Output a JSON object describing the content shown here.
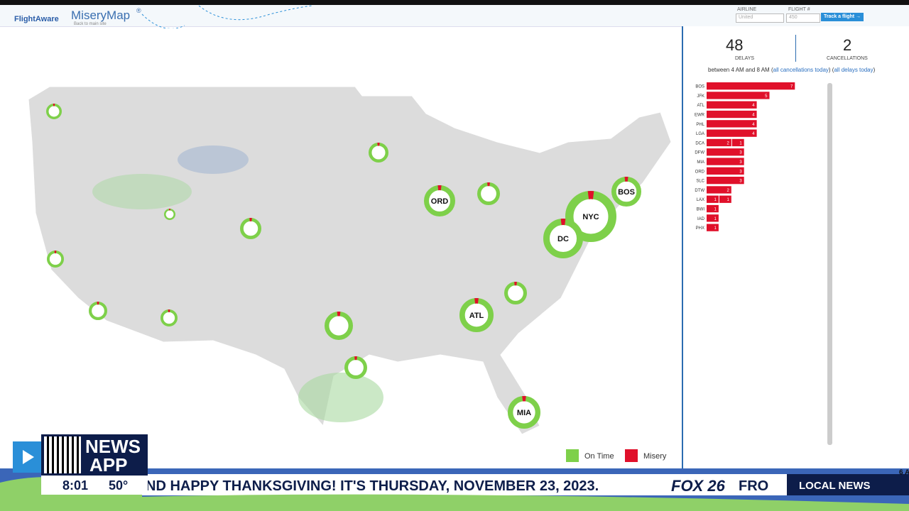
{
  "header": {
    "logo": "FlightAware",
    "title": "MiseryMap",
    "title_mark": "®",
    "back_link": "Back to main site",
    "airline_label": "AIRLINE",
    "airline_placeholder": "United",
    "flight_label": "FLIGHT #",
    "flight_placeholder": "450",
    "track_button": "Track a flight →"
  },
  "stats": {
    "delays": "48",
    "delays_label": "DELAYS",
    "cancellations": "2",
    "cancellations_label": "CANCELLATIONS",
    "period": "between 4 AM and 8 AM",
    "cancel_link": "all cancellations today",
    "delay_link": "all delays today"
  },
  "delay_bars": {
    "rows": [
      {
        "airport": "BOS",
        "segments": [
          7
        ]
      },
      {
        "airport": "JFK",
        "segments": [
          5
        ]
      },
      {
        "airport": "ATL",
        "segments": [
          4
        ]
      },
      {
        "airport": "EWR",
        "segments": [
          4
        ]
      },
      {
        "airport": "PHL",
        "segments": [
          4
        ]
      },
      {
        "airport": "LGA",
        "segments": [
          4
        ]
      },
      {
        "airport": "DCA",
        "segments": [
          2,
          1
        ]
      },
      {
        "airport": "DFW",
        "segments": [
          3
        ]
      },
      {
        "airport": "MIA",
        "segments": [
          3
        ]
      },
      {
        "airport": "ORD",
        "segments": [
          3
        ]
      },
      {
        "airport": "SLC",
        "segments": [
          3
        ]
      },
      {
        "airport": "DTW",
        "segments": [
          2
        ]
      },
      {
        "airport": "LAX",
        "segments": [
          1,
          1
        ]
      },
      {
        "airport": "BWI",
        "segments": [
          1
        ]
      },
      {
        "airport": "IAD",
        "segments": [
          1
        ]
      },
      {
        "airport": "PHX",
        "segments": [
          1
        ]
      }
    ]
  },
  "map": {
    "airports": [
      "ORD",
      "NYC",
      "BOS",
      "DC",
      "ATL",
      "MIA"
    ],
    "legend": [
      "On Time",
      "Misery"
    ]
  },
  "broadcast": {
    "app_line1": "NEWS",
    "app_line2": "APP",
    "time": "8:01",
    "temperature": "50°",
    "ticker": "ND HAPPY THANKSGIVING! IT'S THURSDAY, NOVEMBER 23, 2023.",
    "station": "FOX 26",
    "ticker_tail": "FRO",
    "section": "LOCAL NEWS",
    "corner": "6 A"
  }
}
